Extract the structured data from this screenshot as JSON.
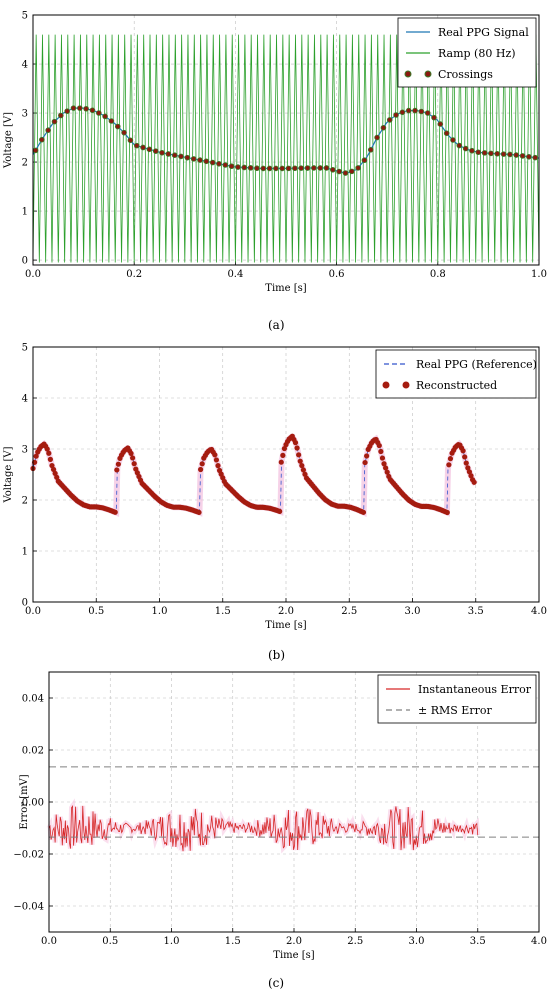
{
  "captions": [
    "(a)",
    "(b)",
    "(c)"
  ],
  "colors": {
    "ppg": "#1f77b4",
    "ramp": "#2ca02c",
    "crossings": "#8b1a10",
    "crossings_edge": "#3b7a2a",
    "reconstructed": "#a51c10",
    "error": "#d62728",
    "rms": "#808080",
    "grid": "#bfbfbf"
  },
  "chart_data": [
    {
      "type": "line",
      "xlabel": "Time [s]",
      "ylabel": "Voltage [V]",
      "xlim": [
        0.0,
        1.0
      ],
      "ylim": [
        -0.1,
        5.0
      ],
      "xticks": [
        "0.0",
        "0.2",
        "0.4",
        "0.6",
        "0.8",
        "1.0"
      ],
      "yticks": [
        "0",
        "1",
        "2",
        "3",
        "4",
        "5"
      ],
      "legend_position": "top-right",
      "legend": [
        "Real PPG Signal",
        "Ramp (80 Hz)",
        "Crossings"
      ],
      "ramp": {
        "frequency_hz": 80,
        "min": -0.05,
        "max": 4.6
      },
      "series": [
        {
          "name": "Real PPG Signal",
          "x": [
            0.0,
            0.02,
            0.04,
            0.06,
            0.08,
            0.1,
            0.12,
            0.14,
            0.16,
            0.18,
            0.2,
            0.25,
            0.3,
            0.35,
            0.4,
            0.45,
            0.5,
            0.55,
            0.58,
            0.6,
            0.62,
            0.64,
            0.66,
            0.68,
            0.7,
            0.72,
            0.74,
            0.76,
            0.78,
            0.8,
            0.82,
            0.84,
            0.86,
            0.88,
            0.9,
            0.95,
            1.0
          ],
          "y": [
            2.15,
            2.5,
            2.8,
            3.0,
            3.1,
            3.1,
            3.05,
            2.95,
            2.8,
            2.6,
            2.35,
            2.2,
            2.1,
            2.0,
            1.9,
            1.87,
            1.87,
            1.88,
            1.88,
            1.82,
            1.77,
            1.85,
            2.1,
            2.5,
            2.82,
            2.98,
            3.05,
            3.05,
            3.0,
            2.85,
            2.55,
            2.35,
            2.25,
            2.2,
            2.18,
            2.15,
            2.08
          ]
        }
      ]
    },
    {
      "type": "scatter",
      "xlabel": "Time [s]",
      "ylabel": "Voltage [V]",
      "xlim": [
        0.0,
        4.0
      ],
      "ylim": [
        0.0,
        5.0
      ],
      "xticks": [
        "0.0",
        "0.5",
        "1.0",
        "1.5",
        "2.0",
        "2.5",
        "3.0",
        "3.5",
        "4.0"
      ],
      "yticks": [
        "0",
        "1",
        "2",
        "3",
        "4",
        "5"
      ],
      "legend_position": "top-right",
      "legend": [
        "Real PPG (Reference)",
        "Reconstructed"
      ],
      "series": [
        {
          "name": "Reconstructed",
          "beat_starts": [
            0.0,
            0.66,
            1.32,
            1.96,
            2.62,
            3.28
          ],
          "beat_peaks": [
            3.1,
            3.02,
            3.0,
            3.25,
            3.2,
            3.1
          ],
          "beat_shape_x": [
            0.0,
            0.03,
            0.06,
            0.09,
            0.12,
            0.15,
            0.2,
            0.25,
            0.3,
            0.35,
            0.4,
            0.45,
            0.5,
            0.55,
            0.6,
            0.66
          ],
          "beat_shape_y": [
            0.75,
            0.9,
            0.97,
            1.0,
            0.93,
            0.78,
            0.62,
            0.55,
            0.48,
            0.42,
            0.38,
            0.36,
            0.36,
            0.35,
            0.33,
            0.3
          ],
          "end_x": 3.5
        }
      ]
    },
    {
      "type": "line",
      "xlabel": "Time [s]",
      "ylabel": "Error [mV]",
      "xlim": [
        0.0,
        4.0
      ],
      "ylim": [
        -0.05,
        0.05
      ],
      "xticks": [
        "0.0",
        "0.5",
        "1.0",
        "1.5",
        "2.0",
        "2.5",
        "3.0",
        "3.5",
        "4.0"
      ],
      "yticks": [
        "−0.04",
        "−0.02",
        "0.00",
        "0.02",
        "0.04"
      ],
      "legend_position": "top-right",
      "legend": [
        "Instantaneous Error",
        "± RMS Error"
      ],
      "series": [
        {
          "name": "Instantaneous Error",
          "x_start": 0.0,
          "x_end": 3.5,
          "mean": -0.01,
          "amplitude": 0.009
        }
      ],
      "rms_lines": [
        0.0135,
        -0.0135
      ]
    }
  ]
}
